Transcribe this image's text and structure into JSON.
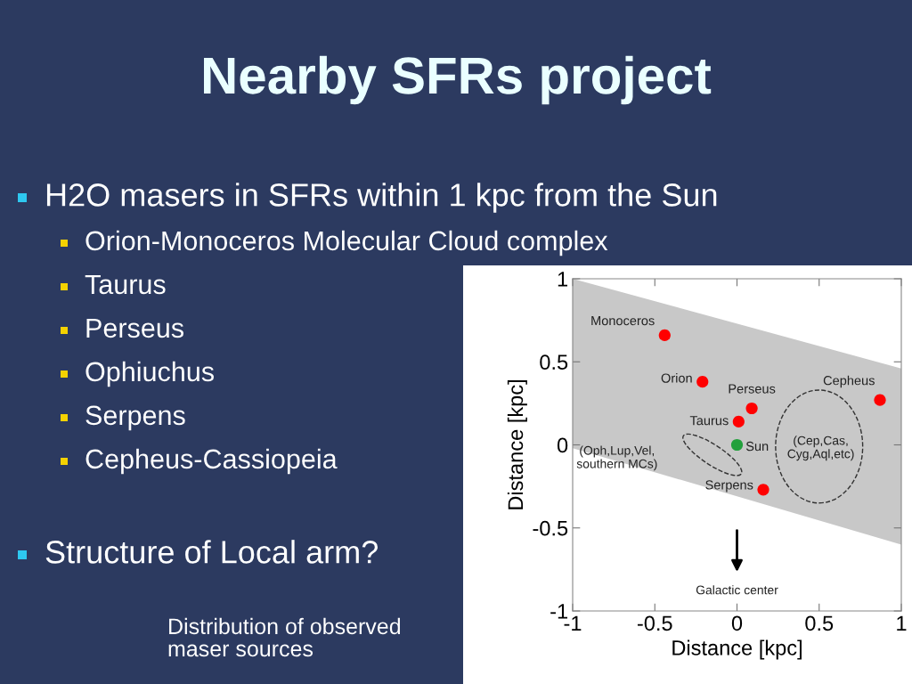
{
  "chart_data": {
    "type": "scatter",
    "title": "Nearby SFRs project",
    "xlabel": "Distance [kpc]",
    "ylabel": "Distance [kpc]",
    "xlim": [
      -1,
      1
    ],
    "ylim": [
      -1,
      1
    ],
    "xticks": [
      -1,
      -0.5,
      0,
      0.5,
      1
    ],
    "yticks": [
      -1,
      -0.5,
      0,
      0.5,
      1
    ],
    "grid": false,
    "legend": false,
    "marker": "circle",
    "series": [
      {
        "type": "line",
        "x": [
          -1,
          1
        ],
        "values": [
          null,
          null
        ],
        "lower": [
          -0.02,
          -0.6
        ],
        "upper": [
          1.0,
          0.46
        ],
        "color": "#c8c8c8"
      },
      {
        "name": "Monoceros",
        "color": "#ff0000",
        "x": [
          -0.44
        ],
        "values": [
          0.66
        ]
      },
      {
        "name": "Orion",
        "color": "#ff0000",
        "x": [
          -0.21
        ],
        "values": [
          0.38
        ]
      },
      {
        "name": "Perseus",
        "color": "#ff0000",
        "x": [
          0.09
        ],
        "values": [
          0.22
        ]
      },
      {
        "name": "Taurus",
        "color": "#ff0000",
        "x": [
          0.01
        ],
        "values": [
          0.14
        ]
      },
      {
        "name": "Sun",
        "color": "#22a03c",
        "x": [
          0
        ],
        "values": [
          0
        ]
      },
      {
        "name": "Serpens",
        "color": "#ff0000",
        "x": [
          0.16
        ],
        "values": [
          -0.27
        ]
      },
      {
        "name": "Cepheus",
        "color": "#ff0000",
        "x": [
          0.87
        ],
        "values": [
          0.27
        ]
      }
    ],
    "annotations": [
      "H2O masers in SFRs within 1 kpc from the Sun",
      "Orion-Monoceros Molecular Cloud complex",
      "Taurus",
      "Perseus",
      "Ophiuchus",
      "Serpens",
      "Cepheus-Cassiopeia",
      "Structure of Local arm?",
      "Distribution of observed\nmaser sources",
      "(Oph,Lup,Vel,\nsouthern MCs)",
      "(Cep,Cas,\nCyg,Aql,etc)",
      "Galactic center"
    ]
  }
}
